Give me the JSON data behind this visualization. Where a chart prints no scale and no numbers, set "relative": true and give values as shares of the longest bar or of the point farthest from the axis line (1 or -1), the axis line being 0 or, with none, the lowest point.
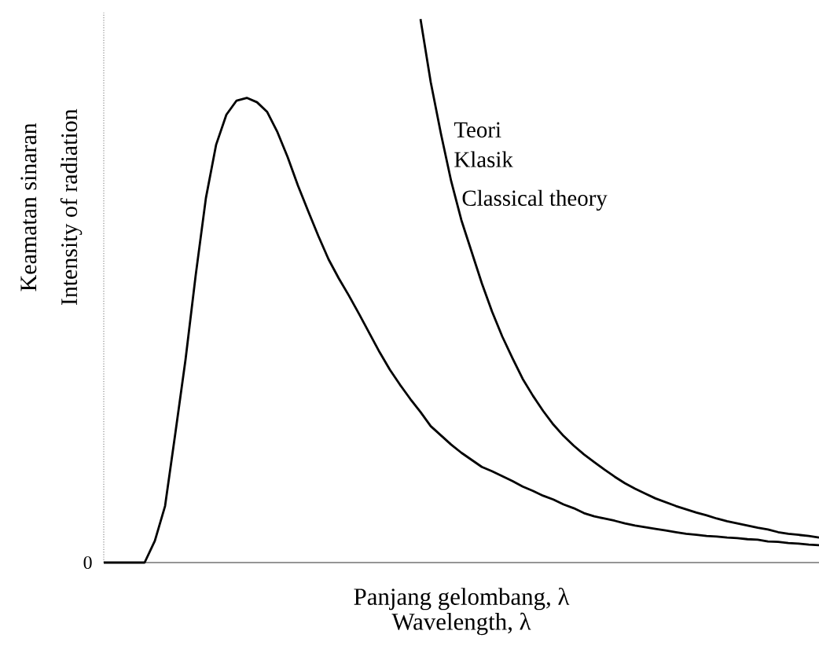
{
  "chart_data": {
    "type": "line",
    "relative": true,
    "marker": "none",
    "xlabel": "Panjang gelombang, λ\nWavelength, λ",
    "ylabel": "Keamatan sinaran\nIntensity of radiation",
    "annotations": [
      "0",
      "Classical theory"
    ],
    "categories": [
      null,
      null,
      null,
      null,
      null,
      null,
      null,
      null,
      null,
      null,
      null,
      null,
      null,
      null,
      null,
      null,
      null,
      null,
      null,
      null,
      null,
      null,
      null,
      null,
      null,
      null,
      null,
      null,
      null,
      null,
      null,
      null,
      null,
      null,
      null,
      null,
      null,
      null,
      null,
      null,
      null,
      null,
      null,
      null,
      null,
      null,
      null,
      null,
      null,
      null,
      null,
      null,
      null,
      null,
      null,
      null,
      null,
      null,
      null,
      null,
      null,
      null,
      null,
      null,
      null,
      null,
      null,
      null,
      null,
      null,
      null
    ],
    "series": [
      {
        "color": "#000000",
        "values": [
          0,
          0,
          0,
          0,
          0,
          0.04,
          0.104,
          0.237,
          0.373,
          0.529,
          0.671,
          0.769,
          0.824,
          0.85,
          0.855,
          0.847,
          0.829,
          0.792,
          0.746,
          0.694,
          0.647,
          0.601,
          0.558,
          0.523,
          0.491,
          0.457,
          0.422,
          0.387,
          0.355,
          0.327,
          0.301,
          0.277,
          0.251,
          0.234,
          0.217,
          0.202,
          0.189,
          0.176,
          0.168,
          0.159,
          0.15,
          0.14,
          0.132,
          0.123,
          0.116,
          0.107,
          0.1,
          0.091,
          0.085,
          0.081,
          0.077,
          0.072,
          0.068,
          0.065,
          0.062,
          0.059,
          0.056,
          0.053,
          0.051,
          0.049,
          0.048,
          0.046,
          0.045,
          0.043,
          0.042,
          0.039,
          0.038,
          0.036,
          0.035,
          0.033,
          0.032
        ]
      },
      {
        "name": "Teori Klasik",
        "color": "#000000",
        "values": [
          null,
          null,
          null,
          null,
          null,
          null,
          null,
          null,
          null,
          null,
          null,
          null,
          null,
          null,
          null,
          null,
          null,
          null,
          null,
          null,
          null,
          null,
          null,
          null,
          null,
          null,
          null,
          null,
          null,
          null,
          null,
          1.0,
          0.884,
          0.789,
          0.702,
          0.63,
          0.572,
          0.514,
          0.462,
          0.416,
          0.376,
          0.338,
          0.307,
          0.279,
          0.254,
          0.233,
          0.215,
          0.199,
          0.185,
          0.171,
          0.158,
          0.146,
          0.136,
          0.127,
          0.118,
          0.111,
          0.104,
          0.098,
          0.092,
          0.087,
          0.081,
          0.076,
          0.072,
          0.068,
          0.064,
          0.061,
          0.056,
          0.053,
          0.051,
          0.049,
          0.046
        ]
      }
    ]
  }
}
